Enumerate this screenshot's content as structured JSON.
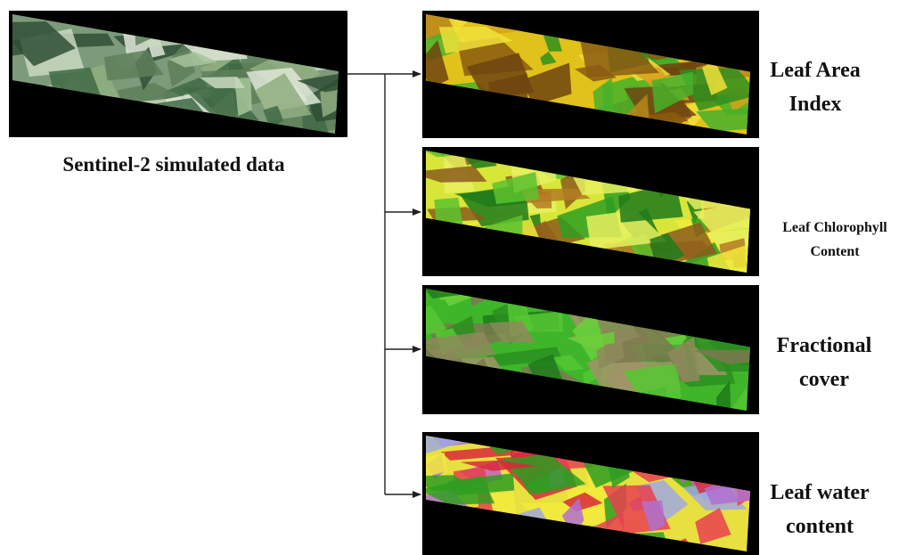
{
  "input": {
    "label": "Sentinel-2 simulated data"
  },
  "outputs": [
    {
      "label_lines": [
        "Leaf Area",
        "Index"
      ]
    },
    {
      "label_lines": [
        "Leaf Chlorophyll",
        "Content"
      ]
    },
    {
      "label_lines": [
        "Fractional",
        "cover"
      ]
    },
    {
      "label_lines": [
        "Leaf water",
        "content"
      ]
    }
  ]
}
